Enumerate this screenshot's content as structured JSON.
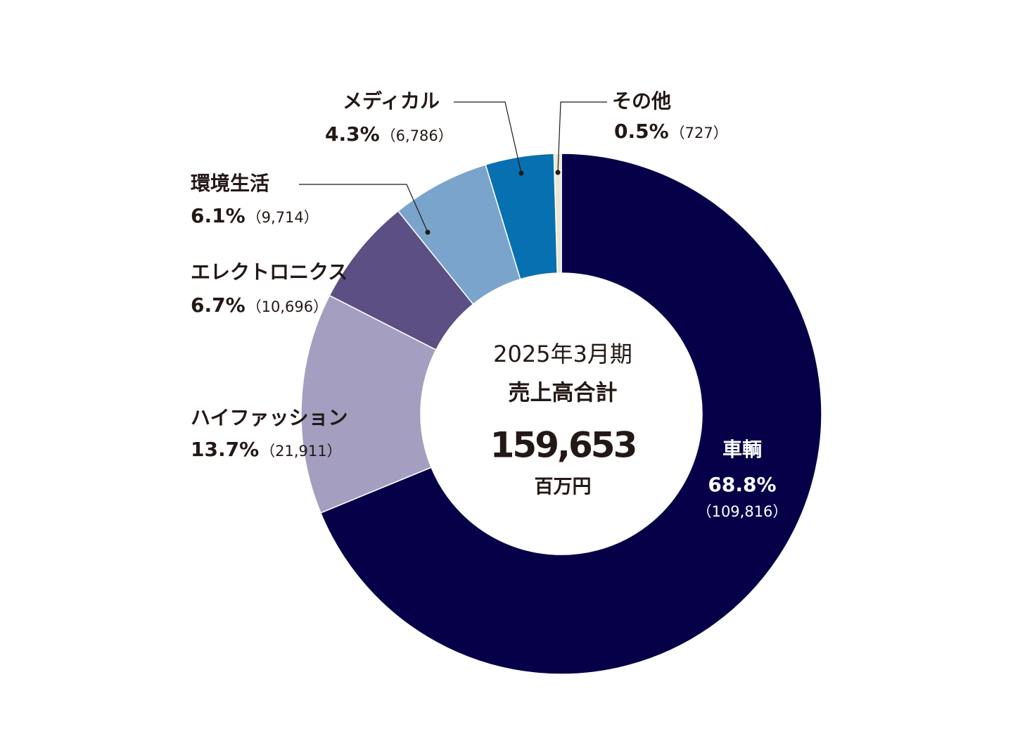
{
  "chart_data": {
    "type": "donut",
    "categories": [
      "車輌",
      "ハイファッション",
      "エレクトロニクス",
      "環境生活",
      "メディカル",
      "その他"
    ],
    "values": [
      109816,
      21911,
      10696,
      9714,
      6786,
      727
    ],
    "value_labels": [
      "（109,816）",
      "（21,911）",
      "（10,696）",
      "（9,714）",
      "（6,786）",
      "（727）"
    ],
    "shares": [
      68.8,
      13.7,
      6.7,
      6.1,
      4.3,
      0.5
    ],
    "share_labels": [
      "68.8%",
      "13.7%",
      "6.7%",
      "6.1%",
      "4.3%",
      "0.5%"
    ],
    "colors": [
      "#050048",
      "#a49fc0",
      "#5b4f83",
      "#7aa4cc",
      "#0770b0",
      "#ece6d6"
    ],
    "center": {
      "period": "2025年3月期",
      "title": "売上高合計",
      "total": {
        "value": 159653,
        "label": "159,653"
      },
      "unit": "百万円"
    }
  }
}
